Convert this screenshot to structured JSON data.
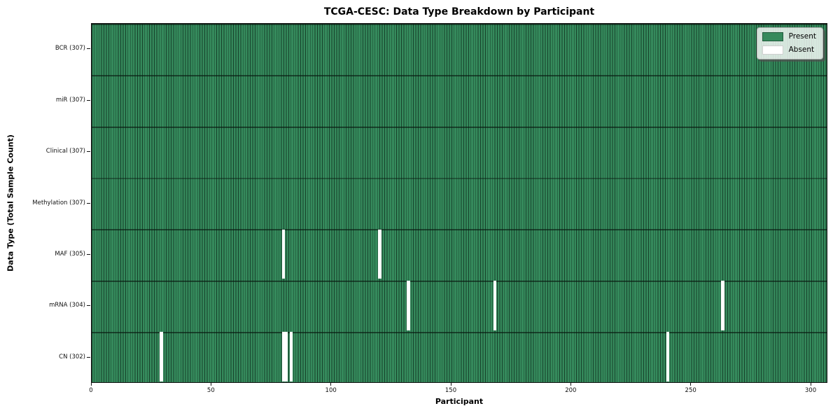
{
  "figure": {
    "title": "TCGA-CESC: Data Type Breakdown by Participant",
    "xlabel": "Participant",
    "ylabel": "Data Type (Total Sample Count)"
  },
  "legend": {
    "items": [
      {
        "label": "Present",
        "color": "#358a5c"
      },
      {
        "label": "Absent",
        "color": "#ffffff"
      }
    ]
  },
  "chart_data": {
    "type": "heatmap",
    "title": "TCGA-CESC: Data Type Breakdown by Participant",
    "xlabel": "Participant",
    "ylabel": "Data Type (Total Sample Count)",
    "x_ticks": [
      0,
      50,
      100,
      150,
      200,
      250,
      300
    ],
    "x_range": [
      0,
      307
    ],
    "n_participants": 307,
    "present_color": "#358a5c",
    "absent_color": "#ffffff",
    "grid": false,
    "legend_position": "upper right",
    "rows": [
      {
        "label": "BCR (307)",
        "data_type": "BCR",
        "total_samples": 307,
        "absent_participants": []
      },
      {
        "label": "miR (307)",
        "data_type": "miR",
        "total_samples": 307,
        "absent_participants": []
      },
      {
        "label": "Clinical (307)",
        "data_type": "Clinical",
        "total_samples": 307,
        "absent_participants": []
      },
      {
        "label": "Methylation (307)",
        "data_type": "Methylation",
        "total_samples": 307,
        "absent_participants": []
      },
      {
        "label": "MAF (305)",
        "data_type": "MAF",
        "total_samples": 305,
        "absent_participants": [
          80,
          120
        ]
      },
      {
        "label": "mRNA (304)",
        "data_type": "mRNA",
        "total_samples": 304,
        "absent_participants": [
          132,
          168,
          263
        ]
      },
      {
        "label": "CN (302)",
        "data_type": "CN",
        "total_samples": 302,
        "absent_participants": [
          29,
          80,
          81,
          83,
          240
        ]
      }
    ]
  }
}
